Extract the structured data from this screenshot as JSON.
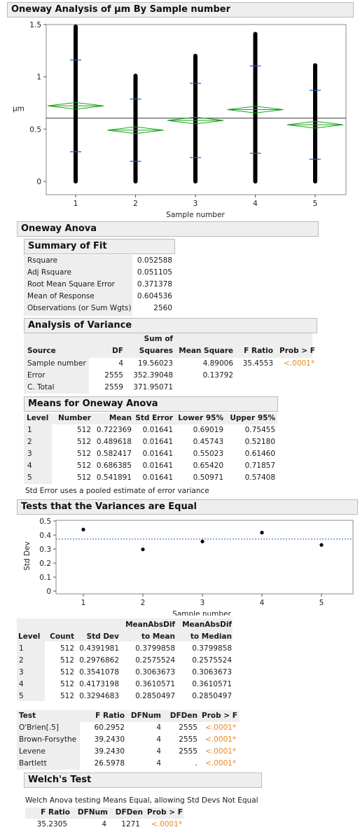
{
  "report": {
    "title": "Oneway Analysis of μm By Sample number",
    "anova_title": "Oneway Anova",
    "summary_title": "Summary of Fit",
    "summary_rows": [
      {
        "label": "Rsquare",
        "value": "0.052588"
      },
      {
        "label": "Adj Rsquare",
        "value": "0.051105"
      },
      {
        "label": "Root Mean Square Error",
        "value": "0.371378"
      },
      {
        "label": "Mean of Response",
        "value": "0.604536"
      },
      {
        "label": "Observations (or Sum Wgts)",
        "value": "2560"
      }
    ],
    "aov_title": "Analysis of Variance",
    "aov_headers": {
      "source": "Source",
      "df": "DF",
      "ss_top": "Sum of",
      "ss_bottom": "Squares",
      "ms": "Mean Square",
      "f": "F Ratio",
      "p": "Prob > F"
    },
    "aov_rows": [
      {
        "source": "Sample number",
        "df": "4",
        "ss": "19.56023",
        "ms": "4.89006",
        "f": "35.4553",
        "p": "<.0001*"
      },
      {
        "source": "Error",
        "df": "2555",
        "ss": "352.39048",
        "ms": "0.13792",
        "f": "",
        "p": ""
      },
      {
        "source": "C. Total",
        "df": "2559",
        "ss": "371.95071",
        "ms": "",
        "f": "",
        "p": ""
      }
    ],
    "means_title": "Means for Oneway Anova",
    "means_headers": {
      "level": "Level",
      "number": "Number",
      "mean": "Mean",
      "se": "Std Error",
      "lower": "Lower 95%",
      "upper": "Upper 95%"
    },
    "means_rows": [
      {
        "level": "1",
        "number": "512",
        "mean": "0.722369",
        "se": "0.01641",
        "lower": "0.69019",
        "upper": "0.75455"
      },
      {
        "level": "2",
        "number": "512",
        "mean": "0.489618",
        "se": "0.01641",
        "lower": "0.45743",
        "upper": "0.52180"
      },
      {
        "level": "3",
        "number": "512",
        "mean": "0.582417",
        "se": "0.01641",
        "lower": "0.55023",
        "upper": "0.61460"
      },
      {
        "level": "4",
        "number": "512",
        "mean": "0.686385",
        "se": "0.01641",
        "lower": "0.65420",
        "upper": "0.71857"
      },
      {
        "level": "5",
        "number": "512",
        "mean": "0.541891",
        "se": "0.01641",
        "lower": "0.50971",
        "upper": "0.57408"
      }
    ],
    "means_note": "Std Error uses a pooled estimate of error variance",
    "variances_title": "Tests that the Variances are Equal",
    "sd_headers": {
      "level": "Level",
      "count": "Count",
      "sd": "Std Dev",
      "mad_mean_top": "MeanAbsDif",
      "mad_mean_bottom": "to Mean",
      "mad_median_top": "MeanAbsDif",
      "mad_median_bottom": "to Median"
    },
    "sd_rows": [
      {
        "level": "1",
        "count": "512",
        "sd": "0.4391981",
        "mad_mean": "0.3799858",
        "mad_median": "0.3799858"
      },
      {
        "level": "2",
        "count": "512",
        "sd": "0.2976862",
        "mad_mean": "0.2575524",
        "mad_median": "0.2575524"
      },
      {
        "level": "3",
        "count": "512",
        "sd": "0.3541078",
        "mad_mean": "0.3063673",
        "mad_median": "0.3063673"
      },
      {
        "level": "4",
        "count": "512",
        "sd": "0.4173198",
        "mad_mean": "0.3610571",
        "mad_median": "0.3610571"
      },
      {
        "level": "5",
        "count": "512",
        "sd": "0.3294683",
        "mad_mean": "0.2850497",
        "mad_median": "0.2850497"
      }
    ],
    "test_headers": {
      "test": "Test",
      "f": "F Ratio",
      "dfnum": "DFNum",
      "dfden": "DFDen",
      "p": "Prob > F"
    },
    "test_rows": [
      {
        "test": "O'Brien[.5]",
        "f": "60.2952",
        "dfnum": "4",
        "dfden": "2555",
        "p": "<.0001*"
      },
      {
        "test": "Brown-Forsythe",
        "f": "39.2430",
        "dfnum": "4",
        "dfden": "2555",
        "p": "<.0001*"
      },
      {
        "test": "Levene",
        "f": "39.2430",
        "dfnum": "4",
        "dfden": "2555",
        "p": "<.0001*"
      },
      {
        "test": "Bartlett",
        "f": "26.5978",
        "dfnum": "4",
        "dfden": ".",
        "p": "<.0001*"
      }
    ],
    "welch_title": "Welch's Test",
    "welch_note": "Welch Anova testing Means Equal, allowing Std Devs Not Equal",
    "welch_headers": {
      "f": "F Ratio",
      "dfnum": "DFNum",
      "dfden": "DFDen",
      "p": "Prob > F"
    },
    "welch_row": {
      "f": "35.2305",
      "dfnum": "4",
      "dfden": "1271",
      "p": "<.0001*"
    }
  },
  "colors": {
    "diamond": "#1aa31a",
    "significant": "#e58a2a",
    "ref_line": "#1f5fbf",
    "header_bg": "#eeeeee"
  },
  "chart_data": [
    {
      "type": "scatter",
      "title": "",
      "xlabel": "Sample number",
      "ylabel": "μm",
      "categories": [
        "1",
        "2",
        "3",
        "4",
        "5"
      ],
      "ylim": [
        0,
        1.5
      ],
      "yticks": [
        "0",
        "0.5",
        "1",
        "1.5"
      ],
      "grand_mean": 0.604536,
      "data_range": [
        {
          "min": 0,
          "max": 1.48
        },
        {
          "min": 0,
          "max": 1.01
        },
        {
          "min": 0,
          "max": 1.2
        },
        {
          "min": 0,
          "max": 1.41
        },
        {
          "min": 0,
          "max": 1.11
        }
      ],
      "sd_ticks": [
        {
          "lower": 0.283,
          "upper": 1.161
        },
        {
          "lower": 0.192,
          "upper": 0.787
        },
        {
          "lower": 0.228,
          "upper": 0.937
        },
        {
          "lower": 0.269,
          "upper": 1.104
        },
        {
          "lower": 0.212,
          "upper": 0.871
        }
      ],
      "means": [
        0.722369,
        0.489618,
        0.582417,
        0.686385,
        0.541891
      ],
      "ci_lower": [
        0.69019,
        0.45743,
        0.55023,
        0.6542,
        0.50971
      ],
      "ci_upper": [
        0.75455,
        0.5218,
        0.6146,
        0.71857,
        0.57408
      ]
    },
    {
      "type": "scatter",
      "title": "",
      "xlabel": "Sample number",
      "ylabel": "Std Dev",
      "categories": [
        "1",
        "2",
        "3",
        "4",
        "5"
      ],
      "values": [
        0.4391981,
        0.2976862,
        0.3541078,
        0.4173198,
        0.3294683
      ],
      "ylim": [
        0,
        0.5
      ],
      "yticks": [
        "0",
        "0.1",
        "0.2",
        "0.3",
        "0.4",
        "0.5"
      ],
      "reference_line": 0.371378
    }
  ]
}
